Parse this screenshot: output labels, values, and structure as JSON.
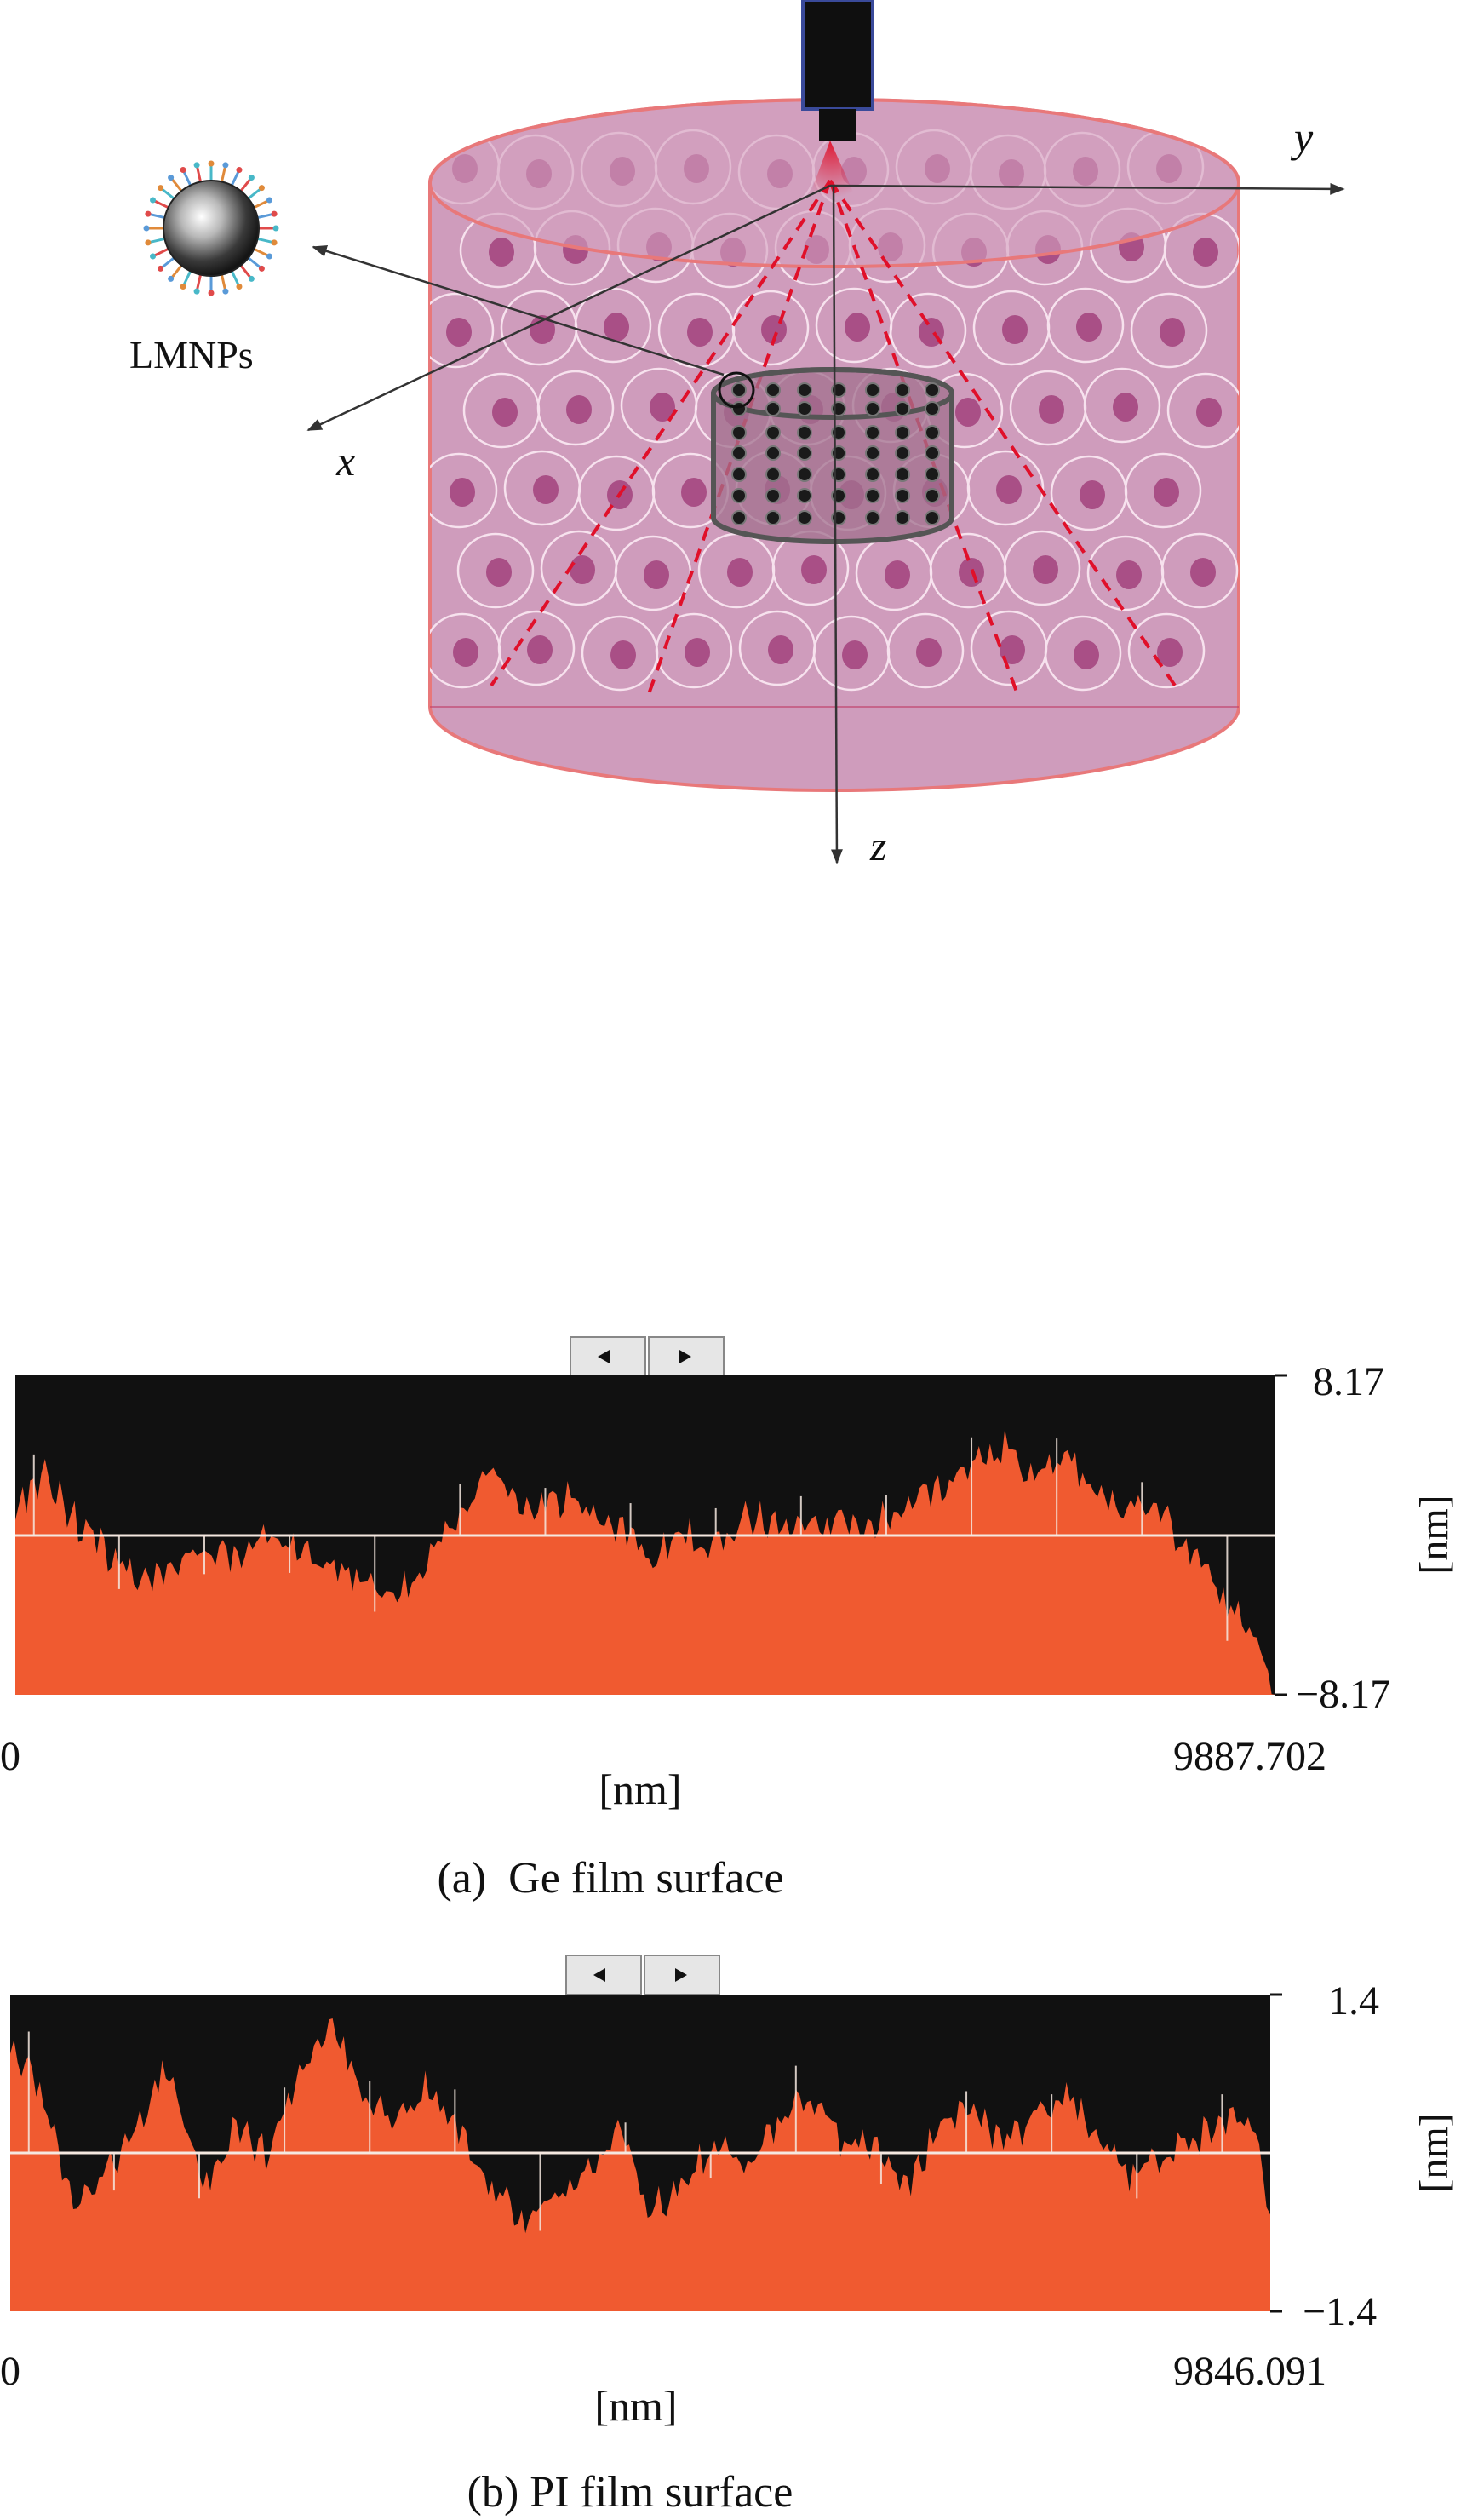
{
  "diagram": {
    "particle_label": "LMNPs",
    "axis_x": "x",
    "axis_y": "y",
    "axis_z": "z",
    "colors": {
      "tissue": "#cf9cbc",
      "tissue_edge": "#e8787a",
      "nucleus": "#a94f86",
      "cell_outline": "#f7e2ee",
      "beam": "#e0102a",
      "transducer": "#0f0f0f"
    }
  },
  "profiles": [
    {
      "id": "a",
      "caption": "(a)  Ge film surface",
      "y_max_label": "8.17",
      "y_min_label": "−8.17",
      "y_unit": "[nm]",
      "x_min_label": "0",
      "x_max_label": "9887.702",
      "x_unit": "[nm]",
      "y_range": [
        -8.17,
        8.17
      ],
      "x_range": [
        0,
        9887.702
      ],
      "colors": {
        "fill": "#f05a30",
        "background": "#111111",
        "midline": "#f5e8e0"
      }
    },
    {
      "id": "b",
      "caption": "(b) PI film surface",
      "y_max_label": "1.4",
      "y_min_label": "−1.4",
      "y_unit": "[nm]",
      "x_min_label": "0",
      "x_max_label": "9846.091",
      "x_unit": "[nm]",
      "y_range": [
        -1.4,
        1.4
      ],
      "x_range": [
        0,
        9846.091
      ],
      "colors": {
        "fill": "#f05a30",
        "background": "#111111",
        "midline": "#f5e8e0"
      }
    }
  ],
  "chart_data": [
    {
      "type": "area",
      "title": "(a)  Ge film surface",
      "xlabel": "[nm]",
      "ylabel": "[nm]",
      "xlim": [
        0,
        9887.702
      ],
      "ylim": [
        -8.17,
        8.17
      ],
      "series": [
        {
          "x": [
            0,
            250,
            500,
            750,
            1000,
            1250,
            1500,
            1750,
            2000,
            2250,
            2500,
            2750,
            3000,
            3250,
            3500,
            3750,
            4000,
            4250,
            4500,
            4750,
            5000,
            5250,
            5500,
            5750,
            6000,
            6250,
            6500,
            6750,
            7000,
            7250,
            7500,
            7750,
            8000,
            8250,
            8500,
            8750,
            9000,
            9250,
            9500,
            9750,
            9887.702
          ],
          "y": [
            1.5,
            3.0,
            0.5,
            -1.0,
            -2.5,
            -1.8,
            -0.5,
            -1.2,
            0.0,
            -1.0,
            -1.5,
            -2.5,
            -3.0,
            -1.0,
            0.8,
            3.5,
            1.0,
            2.0,
            1.2,
            0.5,
            -1.0,
            0.0,
            -0.5,
            1.0,
            0.5,
            0.2,
            1.0,
            0.5,
            1.5,
            2.5,
            3.5,
            4.5,
            3.0,
            4.0,
            2.0,
            1.5,
            1.0,
            -1.0,
            -3.5,
            -5.5,
            -8.0
          ]
        }
      ]
    },
    {
      "type": "area",
      "title": "(b) PI film surface",
      "xlabel": "[nm]",
      "ylabel": "[nm]",
      "xlim": [
        0,
        9846.091
      ],
      "ylim": [
        -1.4,
        1.4
      ],
      "series": [
        {
          "x": [
            0,
            250,
            500,
            750,
            1000,
            1250,
            1500,
            1750,
            2000,
            2250,
            2500,
            2750,
            3000,
            3250,
            3500,
            3750,
            4000,
            4250,
            4500,
            4750,
            5000,
            5250,
            5500,
            5750,
            6000,
            6250,
            6500,
            6750,
            7000,
            7250,
            7500,
            7750,
            8000,
            8250,
            8500,
            8750,
            9000,
            9250,
            9500,
            9750,
            9846.091
          ],
          "y": [
            1.0,
            0.5,
            -0.5,
            -0.2,
            0.3,
            0.8,
            -0.3,
            0.2,
            0.0,
            0.6,
            1.2,
            0.5,
            0.3,
            0.6,
            0.2,
            -0.3,
            -0.6,
            -0.4,
            -0.2,
            0.2,
            -0.5,
            -0.3,
            0.1,
            -0.1,
            0.3,
            0.5,
            0.1,
            0.0,
            -0.3,
            0.2,
            0.4,
            0.1,
            0.3,
            0.5,
            0.2,
            -0.2,
            0.0,
            0.1,
            0.3,
            0.1,
            -0.5
          ]
        }
      ]
    }
  ]
}
